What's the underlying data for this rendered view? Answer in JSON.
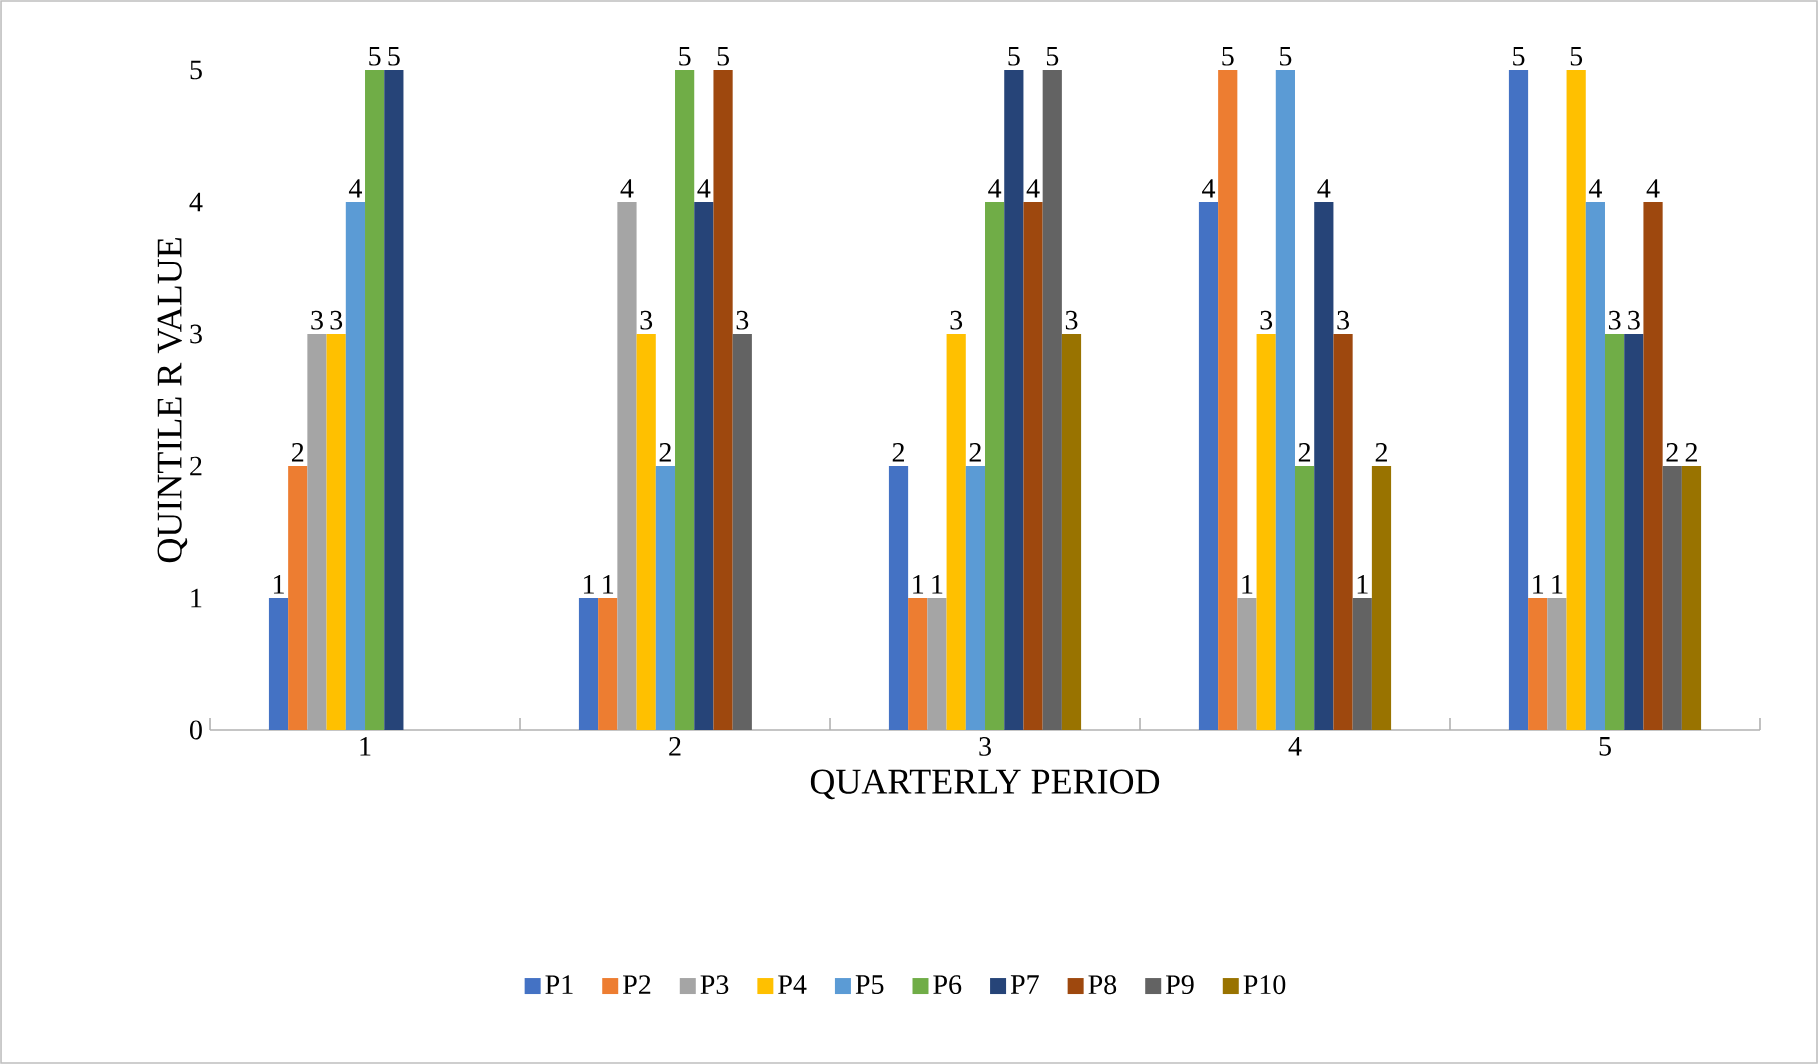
{
  "chart_data": {
    "type": "bar",
    "xlabel": "QUARTERLY PERIOD",
    "ylabel": "QUINTILE R VALUE",
    "categories": [
      "1",
      "2",
      "3",
      "4",
      "5"
    ],
    "ylim": [
      0,
      5
    ],
    "yticks": [
      0,
      1,
      2,
      3,
      4,
      5
    ],
    "data_labels": true,
    "legend": "bottom",
    "series": [
      {
        "name": "P1",
        "color": "#4472c4",
        "values": [
          1,
          1,
          2,
          4,
          5
        ]
      },
      {
        "name": "P2",
        "color": "#ed7d31",
        "values": [
          2,
          1,
          1,
          5,
          1
        ]
      },
      {
        "name": "P3",
        "color": "#a5a5a5",
        "values": [
          3,
          4,
          1,
          1,
          1
        ]
      },
      {
        "name": "P4",
        "color": "#ffc000",
        "values": [
          3,
          3,
          3,
          3,
          5
        ]
      },
      {
        "name": "P5",
        "color": "#5b9bd5",
        "values": [
          4,
          2,
          2,
          5,
          4
        ]
      },
      {
        "name": "P6",
        "color": "#70ad47",
        "values": [
          5,
          5,
          4,
          2,
          3
        ]
      },
      {
        "name": "P7",
        "color": "#264478",
        "values": [
          5,
          4,
          5,
          4,
          3
        ]
      },
      {
        "name": "P8",
        "color": "#9e480e",
        "values": [
          null,
          5,
          4,
          3,
          4
        ]
      },
      {
        "name": "P9",
        "color": "#636363",
        "values": [
          null,
          3,
          5,
          1,
          2
        ]
      },
      {
        "name": "P10",
        "color": "#997300",
        "values": [
          null,
          null,
          3,
          2,
          2
        ]
      }
    ]
  }
}
